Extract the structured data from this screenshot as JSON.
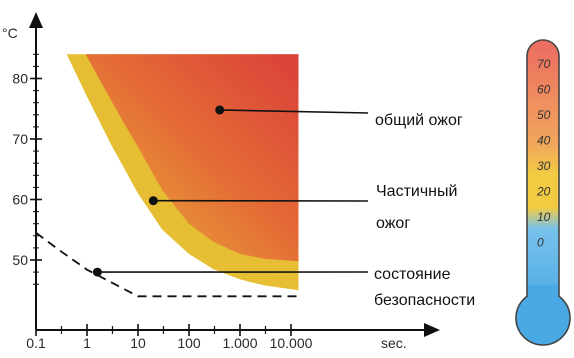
{
  "chart_data": {
    "type": "area",
    "title": "",
    "xlabel": "",
    "ylabel": "",
    "x_scale": "log",
    "x_ticks": [
      0.1,
      1,
      10,
      100,
      1000,
      10000
    ],
    "x_tick_labels": [
      "0.1",
      "1",
      "10",
      "100",
      "1.000",
      "10.000"
    ],
    "x_unit_label": "sec.",
    "y_ticks": [
      50,
      60,
      70,
      80
    ],
    "y_tick_labels": [
      "50",
      "60",
      "70",
      "80"
    ],
    "y_unit_label": "°C",
    "xlim": [
      0.1,
      60000
    ],
    "ylim": [
      43,
      87
    ],
    "regions": [
      {
        "label": "общий ожог",
        "color": "#dc3f33",
        "boundary": [
          [
            0.94,
            84
          ],
          [
            2,
            79
          ],
          [
            5,
            73
          ],
          [
            10,
            68.7
          ],
          [
            30,
            61.5
          ],
          [
            100,
            56
          ],
          [
            300,
            53
          ],
          [
            1000,
            51
          ],
          [
            3000,
            50.2
          ],
          [
            14000,
            49.8
          ]
        ]
      },
      {
        "label": "Частичный ожог",
        "color": "#e5be33",
        "boundary": [
          [
            0.4,
            84
          ],
          [
            1,
            77
          ],
          [
            3,
            69
          ],
          [
            10,
            61
          ],
          [
            30,
            55
          ],
          [
            100,
            51
          ],
          [
            300,
            48.5
          ],
          [
            1000,
            46.8
          ],
          [
            3000,
            45.8
          ],
          [
            14000,
            45
          ]
        ]
      }
    ],
    "safety_line": {
      "label": "состояние безопасности",
      "points": [
        [
          0.1,
          54.5
        ],
        [
          0.3,
          51.5
        ],
        [
          1,
          48.4
        ],
        [
          10,
          44
        ],
        [
          14000,
          44
        ]
      ]
    },
    "markers": [
      {
        "x": 400,
        "y": 74.8
      },
      {
        "x": 20,
        "y": 59.8
      },
      {
        "x": 1.6,
        "y": 48
      }
    ]
  },
  "legend": {
    "total_burn": "общий ожог",
    "partial_burn_line1": "Частичный",
    "partial_burn_line2": "ожог",
    "safety_line1": "состояние",
    "safety_line2": "безопасности"
  },
  "thermometer": {
    "labels": [
      "70",
      "60",
      "50",
      "40",
      "30",
      "20",
      "10",
      "0"
    ],
    "colors": {
      "top": "#e84b4b",
      "middle": "#f3c43f",
      "bottom": "#56b4e9"
    }
  }
}
